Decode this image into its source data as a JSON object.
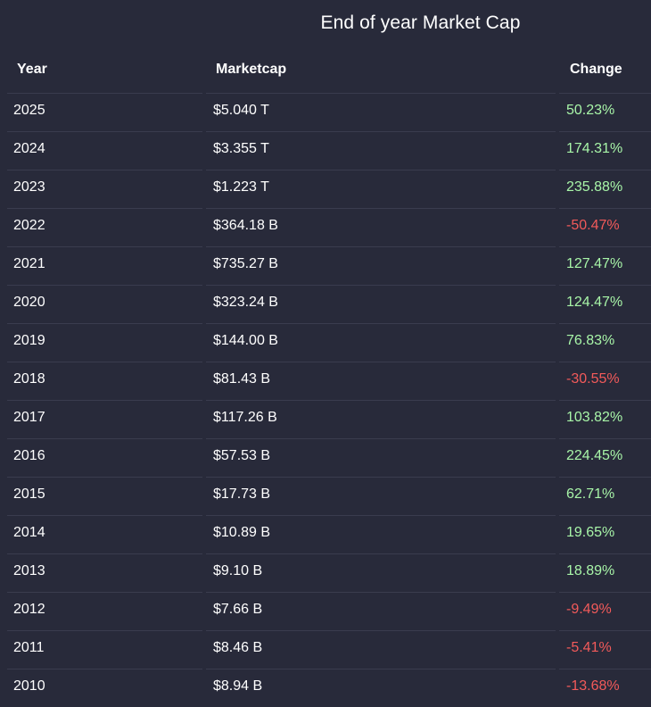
{
  "title": "End of year Market Cap",
  "headers": {
    "year": "Year",
    "marketcap": "Marketcap",
    "change": "Change"
  },
  "colors": {
    "background": "#282a3a",
    "positive": "#a8f5a8",
    "negative": "#f25a5a"
  },
  "rows": [
    {
      "year": "2025",
      "marketcap": "$5.040 T",
      "change": "50.23%"
    },
    {
      "year": "2024",
      "marketcap": "$3.355 T",
      "change": "174.31%"
    },
    {
      "year": "2023",
      "marketcap": "$1.223 T",
      "change": "235.88%"
    },
    {
      "year": "2022",
      "marketcap": "$364.18 B",
      "change": "-50.47%"
    },
    {
      "year": "2021",
      "marketcap": "$735.27 B",
      "change": "127.47%"
    },
    {
      "year": "2020",
      "marketcap": "$323.24 B",
      "change": "124.47%"
    },
    {
      "year": "2019",
      "marketcap": "$144.00 B",
      "change": "76.83%"
    },
    {
      "year": "2018",
      "marketcap": "$81.43 B",
      "change": "-30.55%"
    },
    {
      "year": "2017",
      "marketcap": "$117.26 B",
      "change": "103.82%"
    },
    {
      "year": "2016",
      "marketcap": "$57.53 B",
      "change": "224.45%"
    },
    {
      "year": "2015",
      "marketcap": "$17.73 B",
      "change": "62.71%"
    },
    {
      "year": "2014",
      "marketcap": "$10.89 B",
      "change": "19.65%"
    },
    {
      "year": "2013",
      "marketcap": "$9.10 B",
      "change": "18.89%"
    },
    {
      "year": "2012",
      "marketcap": "$7.66 B",
      "change": "-9.49%"
    },
    {
      "year": "2011",
      "marketcap": "$8.46 B",
      "change": "-5.41%"
    },
    {
      "year": "2010",
      "marketcap": "$8.94 B",
      "change": "-13.68%"
    }
  ]
}
